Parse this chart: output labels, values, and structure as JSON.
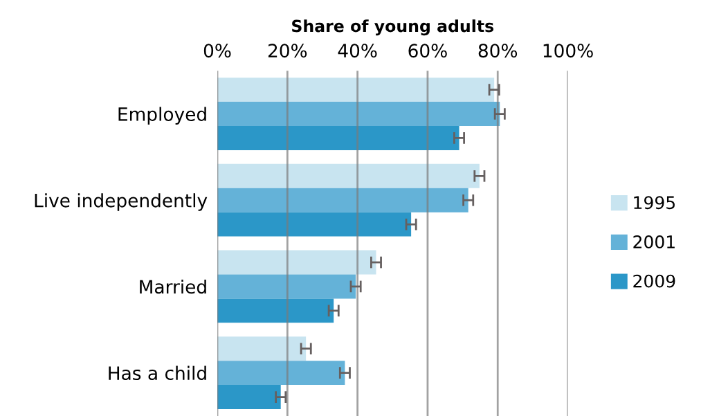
{
  "chart_data": {
    "type": "bar",
    "orientation": "horizontal",
    "xlabel": "Share of young adults",
    "categories": [
      "Employed",
      "Live independently",
      "Married",
      "Has a child"
    ],
    "series": [
      {
        "name": "1995",
        "color": "#c8e4f0",
        "values": [
          79,
          74.8,
          45.3,
          25.3
        ],
        "errors": [
          1.4,
          1.4,
          1.4,
          1.4
        ]
      },
      {
        "name": "2001",
        "color": "#64b2d8",
        "values": [
          80.6,
          71.6,
          39.5,
          36.4
        ],
        "errors": [
          1.4,
          1.4,
          1.4,
          1.4
        ]
      },
      {
        "name": "2009",
        "color": "#2b97c8",
        "values": [
          69,
          55.3,
          33.2,
          18.1
        ],
        "errors": [
          1.4,
          1.4,
          1.4,
          1.4
        ]
      }
    ],
    "xlim": [
      0,
      100
    ],
    "xticks": [
      {
        "value": 0,
        "label": "0%"
      },
      {
        "value": 20,
        "label": "20%"
      },
      {
        "value": 40,
        "label": "40%"
      },
      {
        "value": 60,
        "label": "60%"
      },
      {
        "value": 80,
        "label": "80%"
      },
      {
        "value": 100,
        "label": "100%"
      }
    ],
    "grid": "x",
    "legend": "right"
  }
}
